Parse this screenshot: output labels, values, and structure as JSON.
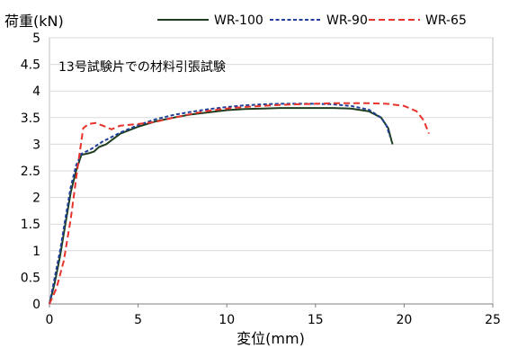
{
  "chart_data": {
    "type": "line",
    "title": "",
    "ylabel": "荷重(kN)",
    "xlabel": "変位(mm)",
    "annotation": "13号試験片での材料引張試験",
    "xlim": [
      0,
      25
    ],
    "ylim": [
      0,
      5
    ],
    "x_ticks": [
      0,
      5,
      10,
      15,
      20,
      25
    ],
    "y_ticks": [
      "0",
      "0.5",
      "1",
      "1.5",
      "2",
      "2.5",
      "3",
      "3.5",
      "4",
      "4.5",
      "5"
    ],
    "y_tick_values": [
      0,
      0.5,
      1,
      1.5,
      2,
      2.5,
      3,
      3.5,
      4,
      4.5,
      5
    ],
    "grid": "horizontal",
    "legend_position": "top",
    "series": [
      {
        "name": "WR-100",
        "color": "#1e3d1e",
        "dash": "solid",
        "points": [
          [
            0,
            0
          ],
          [
            0.3,
            0.4
          ],
          [
            0.6,
            0.9
          ],
          [
            0.9,
            1.5
          ],
          [
            1.2,
            2.1
          ],
          [
            1.5,
            2.5
          ],
          [
            1.8,
            2.8
          ],
          [
            2.2,
            2.83
          ],
          [
            2.5,
            2.86
          ],
          [
            2.8,
            2.95
          ],
          [
            3.2,
            3.0
          ],
          [
            4,
            3.2
          ],
          [
            5,
            3.33
          ],
          [
            6,
            3.43
          ],
          [
            7,
            3.5
          ],
          [
            8,
            3.56
          ],
          [
            9,
            3.6
          ],
          [
            10,
            3.64
          ],
          [
            11,
            3.66
          ],
          [
            12,
            3.67
          ],
          [
            13,
            3.68
          ],
          [
            14,
            3.68
          ],
          [
            15,
            3.68
          ],
          [
            16,
            3.68
          ],
          [
            17,
            3.67
          ],
          [
            18,
            3.62
          ],
          [
            18.7,
            3.5
          ],
          [
            19.1,
            3.3
          ],
          [
            19.3,
            3.05
          ],
          [
            19.35,
            3.0
          ]
        ]
      },
      {
        "name": "WR-90",
        "color": "#1f3f99",
        "dash": "dashed",
        "points": [
          [
            0,
            0
          ],
          [
            0.3,
            0.5
          ],
          [
            0.6,
            1.0
          ],
          [
            0.9,
            1.6
          ],
          [
            1.2,
            2.2
          ],
          [
            1.5,
            2.6
          ],
          [
            1.8,
            2.82
          ],
          [
            2.3,
            2.9
          ],
          [
            3,
            3.05
          ],
          [
            4,
            3.22
          ],
          [
            5,
            3.36
          ],
          [
            6,
            3.47
          ],
          [
            7,
            3.55
          ],
          [
            8,
            3.61
          ],
          [
            9,
            3.66
          ],
          [
            10,
            3.7
          ],
          [
            11,
            3.73
          ],
          [
            12,
            3.75
          ],
          [
            13,
            3.76
          ],
          [
            14,
            3.76
          ],
          [
            15,
            3.76
          ],
          [
            16,
            3.75
          ],
          [
            17,
            3.72
          ],
          [
            18,
            3.65
          ],
          [
            18.7,
            3.5
          ],
          [
            19,
            3.35
          ],
          [
            19.2,
            3.15
          ]
        ]
      },
      {
        "name": "WR-65",
        "color": "#e8332c",
        "dash": "dashed",
        "points": [
          [
            0,
            0
          ],
          [
            0.4,
            0.3
          ],
          [
            0.8,
            0.8
          ],
          [
            1.2,
            1.6
          ],
          [
            1.6,
            2.6
          ],
          [
            1.9,
            3.3
          ],
          [
            2.2,
            3.38
          ],
          [
            2.6,
            3.4
          ],
          [
            3,
            3.35
          ],
          [
            3.5,
            3.28
          ],
          [
            4,
            3.35
          ],
          [
            5,
            3.38
          ],
          [
            5.5,
            3.4
          ],
          [
            6,
            3.42
          ],
          [
            7,
            3.5
          ],
          [
            8,
            3.57
          ],
          [
            9,
            3.63
          ],
          [
            10,
            3.67
          ],
          [
            11,
            3.7
          ],
          [
            12,
            3.72
          ],
          [
            13,
            3.74
          ],
          [
            14,
            3.75
          ],
          [
            15,
            3.76
          ],
          [
            16,
            3.77
          ],
          [
            17,
            3.77
          ],
          [
            18,
            3.77
          ],
          [
            19,
            3.76
          ],
          [
            20,
            3.72
          ],
          [
            20.7,
            3.62
          ],
          [
            21.1,
            3.45
          ],
          [
            21.4,
            3.2
          ]
        ]
      }
    ]
  }
}
